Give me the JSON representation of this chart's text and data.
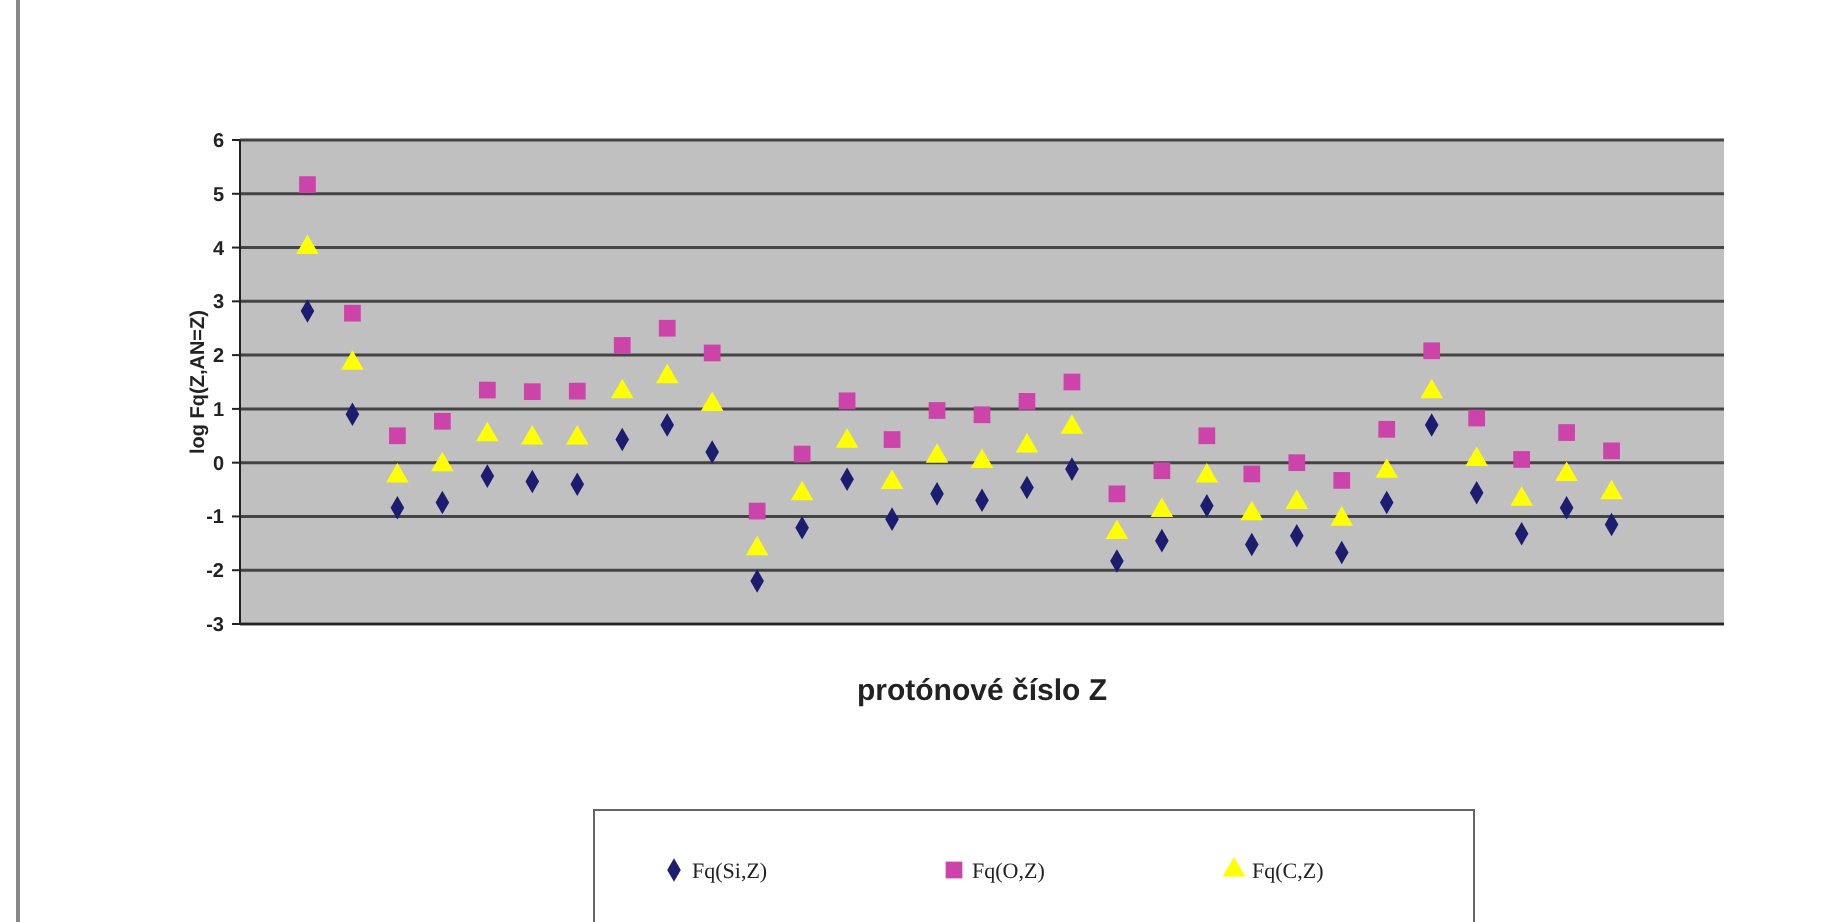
{
  "chart_data": {
    "type": "scatter",
    "ylabel": "log Fq(Z,AN=Z)",
    "xlabel": "protónové číslo Z",
    "categories": [
      null,
      null,
      null,
      null,
      null,
      null,
      null,
      null,
      null,
      null,
      null,
      null,
      null,
      null,
      null,
      null,
      null,
      null,
      null,
      null,
      null,
      null,
      null,
      null,
      null,
      null,
      null,
      null,
      null,
      null,
      null,
      null,
      null
    ],
    "ylim": [
      -3,
      6
    ],
    "yticks": [
      -3,
      -2,
      -1,
      0,
      1,
      2,
      3,
      4,
      5,
      6
    ],
    "grid": "y",
    "legend": "bottom",
    "series": [
      {
        "name": "Fq(Si,Z)",
        "color": "#1c1c70",
        "marker": "diamond",
        "values": [
          null,
          2.82,
          0.9,
          -0.84,
          -0.74,
          -0.25,
          -0.35,
          -0.4,
          0.43,
          0.7,
          0.2,
          -2.2,
          -1.21,
          -0.31,
          -1.05,
          -0.58,
          -0.7,
          -0.46,
          -0.12,
          -1.83,
          -1.45,
          -0.8,
          -1.52,
          -1.36,
          -1.67,
          -0.74,
          0.7,
          -0.56,
          -1.32,
          -0.84,
          -1.15,
          null,
          null
        ]
      },
      {
        "name": "Fq(O,Z)",
        "color": "#cc44aa",
        "marker": "square",
        "values": [
          null,
          5.17,
          2.78,
          0.5,
          0.77,
          1.35,
          1.32,
          1.33,
          2.18,
          2.5,
          2.04,
          -0.9,
          0.16,
          1.15,
          0.43,
          0.97,
          0.89,
          1.14,
          1.5,
          -0.58,
          -0.15,
          0.5,
          -0.21,
          0.0,
          -0.33,
          0.62,
          2.08,
          0.83,
          0.06,
          0.56,
          0.22,
          null,
          null
        ]
      },
      {
        "name": "Fq(C,Z)",
        "color": "#ffff00",
        "marker": "triangle",
        "values": [
          null,
          4.0,
          1.85,
          -0.25,
          -0.04,
          0.52,
          0.46,
          0.46,
          1.32,
          1.6,
          1.08,
          -1.6,
          -0.58,
          0.4,
          -0.37,
          0.12,
          0.02,
          0.31,
          0.66,
          -1.3,
          -0.89,
          -0.25,
          -0.95,
          -0.74,
          -1.05,
          -0.16,
          1.32,
          0.06,
          -0.68,
          -0.22,
          -0.56,
          null,
          null
        ]
      }
    ]
  }
}
